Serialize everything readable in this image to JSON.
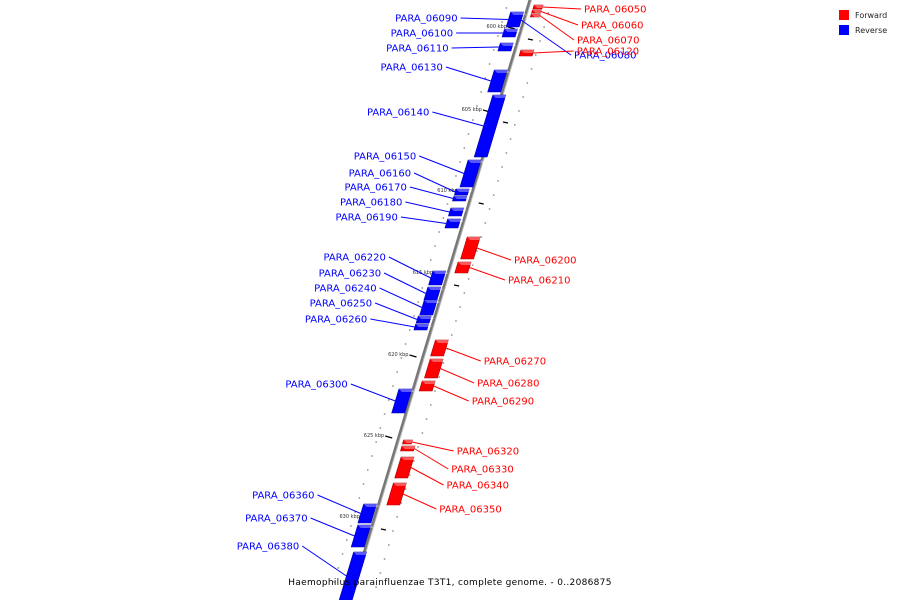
{
  "caption": "Haemophilus parainfluenzae T3T1, complete genome. - 0..2086875",
  "colors": {
    "forward": "#ff0000",
    "reverse": "#0000ff",
    "backbone": "#777777"
  },
  "legend": [
    {
      "label": "Forward",
      "strand": "forward"
    },
    {
      "label": "Reverse",
      "strand": "reverse"
    }
  ],
  "ticks": [
    {
      "label": "600 kbp",
      "kbp": 600
    },
    {
      "label": "605 kbp",
      "kbp": 605
    },
    {
      "label": "610 kbp",
      "kbp": 610
    },
    {
      "label": "615 kbp",
      "kbp": 615
    },
    {
      "label": "620 kbp",
      "kbp": 620
    },
    {
      "label": "625 kbp",
      "kbp": 625
    },
    {
      "label": "630 kbp",
      "kbp": 630
    }
  ],
  "genes": [
    {
      "name": "PARA_06050",
      "strand": "forward"
    },
    {
      "name": "PARA_06060",
      "strand": "forward"
    },
    {
      "name": "PARA_06070",
      "strand": "forward"
    },
    {
      "name": "PARA_06080",
      "strand": "reverse"
    },
    {
      "name": "PARA_06090",
      "strand": "reverse"
    },
    {
      "name": "PARA_06100",
      "strand": "reverse"
    },
    {
      "name": "PARA_06110",
      "strand": "reverse"
    },
    {
      "name": "PARA_06120",
      "strand": "forward"
    },
    {
      "name": "PARA_06130",
      "strand": "reverse"
    },
    {
      "name": "PARA_06140",
      "strand": "reverse"
    },
    {
      "name": "PARA_06150",
      "strand": "reverse"
    },
    {
      "name": "PARA_06160",
      "strand": "reverse"
    },
    {
      "name": "PARA_06170",
      "strand": "reverse"
    },
    {
      "name": "PARA_06180",
      "strand": "reverse"
    },
    {
      "name": "PARA_06190",
      "strand": "reverse"
    },
    {
      "name": "PARA_06200",
      "strand": "forward"
    },
    {
      "name": "PARA_06210",
      "strand": "forward"
    },
    {
      "name": "PARA_06220",
      "strand": "reverse"
    },
    {
      "name": "PARA_06230",
      "strand": "reverse"
    },
    {
      "name": "PARA_06240",
      "strand": "reverse"
    },
    {
      "name": "PARA_06250",
      "strand": "reverse"
    },
    {
      "name": "PARA_06260",
      "strand": "reverse"
    },
    {
      "name": "PARA_06270",
      "strand": "forward"
    },
    {
      "name": "PARA_06280",
      "strand": "forward"
    },
    {
      "name": "PARA_06290",
      "strand": "forward"
    },
    {
      "name": "PARA_06300",
      "strand": "reverse"
    },
    {
      "name": "PARA_06320",
      "strand": "forward"
    },
    {
      "name": "PARA_06330",
      "strand": "forward"
    },
    {
      "name": "PARA_06340",
      "strand": "forward"
    },
    {
      "name": "PARA_06350",
      "strand": "forward"
    },
    {
      "name": "PARA_06360",
      "strand": "reverse"
    },
    {
      "name": "PARA_06370",
      "strand": "reverse"
    },
    {
      "name": "PARA_06380",
      "strand": "reverse"
    }
  ]
}
